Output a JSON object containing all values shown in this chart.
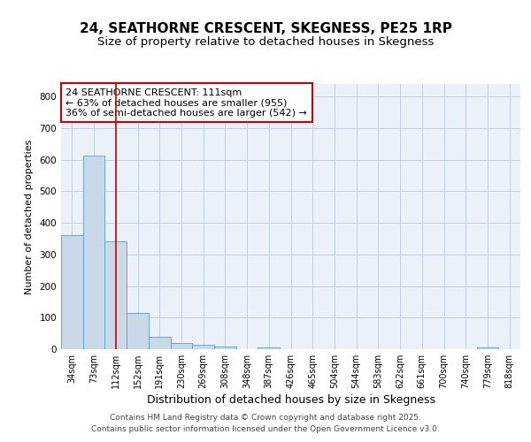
{
  "title1": "24, SEATHORNE CRESCENT, SKEGNESS, PE25 1RP",
  "title2": "Size of property relative to detached houses in Skegness",
  "xlabel": "Distribution of detached houses by size in Skegness",
  "ylabel": "Number of detached properties",
  "categories": [
    "34sqm",
    "73sqm",
    "112sqm",
    "152sqm",
    "191sqm",
    "230sqm",
    "269sqm",
    "308sqm",
    "348sqm",
    "387sqm",
    "426sqm",
    "465sqm",
    "504sqm",
    "544sqm",
    "583sqm",
    "622sqm",
    "661sqm",
    "700sqm",
    "740sqm",
    "779sqm",
    "818sqm"
  ],
  "values": [
    362,
    613,
    342,
    116,
    40,
    20,
    15,
    8,
    0,
    6,
    0,
    0,
    0,
    0,
    0,
    0,
    0,
    0,
    0,
    5,
    0
  ],
  "bar_color": "#c9d9e8",
  "bar_edge_color": "#5b9bd5",
  "grid_color": "#c0d0e0",
  "vline_x": 2,
  "vline_color": "#cc0000",
  "annotation_text": "24 SEATHORNE CRESCENT: 111sqm\n← 63% of detached houses are smaller (955)\n36% of semi-detached houses are larger (542) →",
  "annotation_box_facecolor": "#ffffff",
  "annotation_box_edgecolor": "#cc0000",
  "footer1": "Contains HM Land Registry data © Crown copyright and database right 2025.",
  "footer2": "Contains public sector information licensed under the Open Government Licence v3.0.",
  "ylim": [
    0,
    840
  ],
  "fig_facecolor": "#ffffff",
  "plot_bg": "#eaf1f8",
  "title_fontsize": 11,
  "subtitle_fontsize": 9.5,
  "ylabel_fontsize": 8,
  "xlabel_fontsize": 9,
  "tick_fontsize": 7,
  "footer_fontsize": 6.5
}
